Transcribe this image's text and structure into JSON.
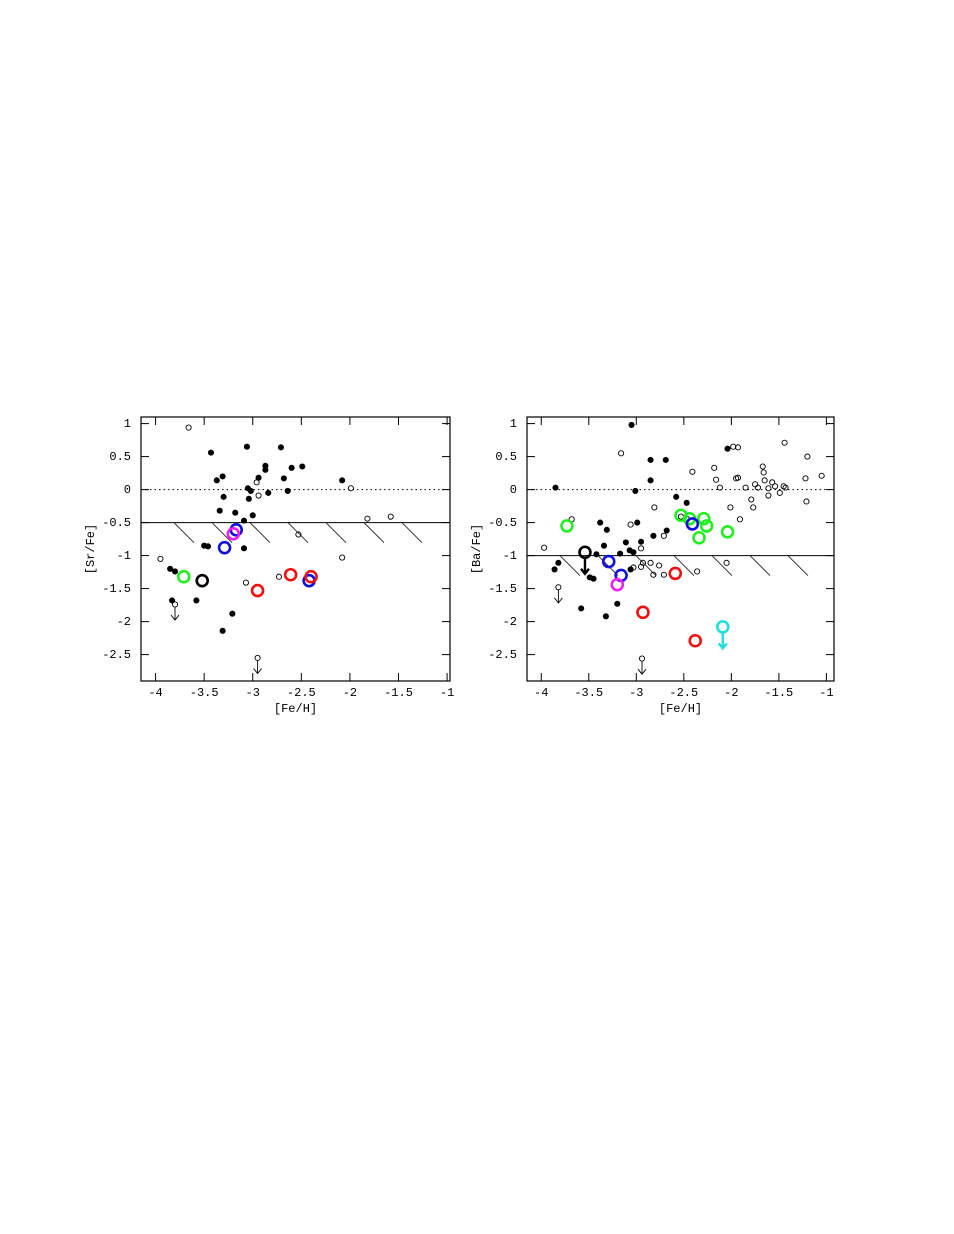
{
  "chart_data": [
    {
      "type": "scatter",
      "xlabel": "[Fe/H]",
      "ylabel": "[Sr/Fe]",
      "xlim": [
        -4.15,
        -0.97
      ],
      "ylim": [
        -2.9,
        1.1
      ],
      "xticks": [
        -4,
        -3.5,
        -3,
        -2.5,
        -2,
        -1.5,
        -1
      ],
      "yticks": [
        1,
        0.5,
        0,
        -0.5,
        -1,
        -1.5,
        -2,
        -2.5
      ],
      "hlines": [
        {
          "y": 0,
          "style": "dotted"
        },
        {
          "y": -0.5,
          "style": "solid",
          "hatch": true
        }
      ],
      "series": [
        {
          "color": "#000000",
          "marker": "filled",
          "x": [
            -3.43,
            -3.37,
            -3.31,
            -3.34,
            -3.3,
            -3.5,
            -3.46,
            -3.18,
            -3.06,
            -3.05,
            -3.02,
            -3.04,
            -2.94,
            -2.87,
            -2.87,
            -2.84,
            -2.71,
            -2.68,
            -2.6,
            -2.64,
            -2.49,
            -3.09,
            -3.09,
            -3.0,
            -3.85,
            -3.8,
            -3.83,
            -3.58,
            -3.21,
            -3.31,
            -2.08
          ],
          "y": [
            0.56,
            0.14,
            0.2,
            -0.32,
            -0.11,
            -0.85,
            -0.86,
            -0.35,
            0.65,
            0.02,
            -0.02,
            -0.14,
            0.18,
            0.36,
            0.3,
            -0.05,
            0.64,
            0.17,
            0.33,
            -0.02,
            0.35,
            -0.47,
            -0.89,
            -0.39,
            -1.2,
            -1.24,
            -1.68,
            -1.68,
            -1.88,
            -2.14,
            0.14
          ]
        },
        {
          "color": "#000000",
          "marker": "open",
          "x": [
            -3.66,
            -2.96,
            -2.94,
            -1.99,
            -1.82,
            -1.58,
            -2.53,
            -2.08,
            -3.95,
            -3.07,
            -2.73
          ],
          "y": [
            0.94,
            0.11,
            -0.09,
            0.02,
            -0.44,
            -0.41,
            -0.68,
            -1.03,
            -1.05,
            -1.41,
            -1.32
          ]
        },
        {
          "color": "#000000",
          "marker": "open",
          "upper_limit": true,
          "x": [
            -3.8,
            -2.95
          ],
          "y": [
            -1.74,
            -2.55
          ]
        },
        {
          "color": "#22ee22",
          "marker": "open-large",
          "x": [
            -3.71
          ],
          "y": [
            -1.32
          ]
        },
        {
          "color": "#000000",
          "marker": "open-large",
          "x": [
            -3.52
          ],
          "y": [
            -1.38
          ]
        },
        {
          "color": "#1010dd",
          "marker": "open-large",
          "x": [
            -3.29,
            -3.17,
            -2.42
          ],
          "y": [
            -0.88,
            -0.61,
            -1.38
          ]
        },
        {
          "color": "#ee22ee",
          "marker": "open-large",
          "x": [
            -3.2
          ],
          "y": [
            -0.67
          ]
        },
        {
          "color": "#ee1111",
          "marker": "open-large",
          "x": [
            -2.95,
            -2.61,
            -2.4
          ],
          "y": [
            -1.53,
            -1.29,
            -1.32
          ]
        }
      ]
    },
    {
      "type": "scatter",
      "xlabel": "[Fe/H]",
      "ylabel": "[Ba/Fe]",
      "xlim": [
        -4.15,
        -0.92
      ],
      "ylim": [
        -2.9,
        1.1
      ],
      "xticks": [
        -4,
        -3.5,
        -3,
        -2.5,
        -2,
        -1.5,
        -1
      ],
      "yticks": [
        1,
        0.5,
        0,
        -0.5,
        -1,
        -1.5,
        -2,
        -2.5
      ],
      "hlines": [
        {
          "y": 0,
          "style": "dotted"
        },
        {
          "y": -1,
          "style": "solid",
          "hatch": true
        }
      ],
      "series": [
        {
          "color": "#000000",
          "marker": "filled",
          "x": [
            -3.05,
            -3.85,
            -2.85,
            -2.69,
            -2.85,
            -3.01,
            -2.99,
            -3.38,
            -3.31,
            -3.34,
            -3.11,
            -2.95,
            -2.82,
            -2.68,
            -2.58,
            -2.47,
            -2.04,
            -3.07,
            -3.03,
            -3.17,
            -3.42,
            -3.86,
            -3.82,
            -3.49,
            -3.45,
            -3.58,
            -3.32,
            -3.2,
            -3.06
          ],
          "y": [
            0.98,
            0.03,
            0.45,
            0.45,
            0.14,
            -0.02,
            -0.5,
            -0.5,
            -0.61,
            -0.85,
            -0.8,
            -0.79,
            -0.7,
            -0.62,
            -0.11,
            -0.2,
            0.62,
            -0.92,
            -0.95,
            -0.97,
            -0.98,
            -1.21,
            -1.11,
            -1.33,
            -1.35,
            -1.8,
            -1.92,
            -1.73,
            -1.21
          ]
        },
        {
          "color": "#000000",
          "marker": "open",
          "x": [
            -3.16,
            -3.68,
            -3.97,
            -2.41,
            -2.18,
            -1.98,
            -1.93,
            -2.12,
            -2.16,
            -1.95,
            -1.85,
            -1.93,
            -1.75,
            -1.67,
            -1.66,
            -1.65,
            -1.72,
            -1.61,
            -1.57,
            -1.61,
            -1.54,
            -1.45,
            -1.49,
            -1.43,
            -1.44,
            -1.2,
            -1.05,
            -1.22,
            -1.21,
            -1.79,
            -1.77,
            -1.91,
            -2.01,
            -2.81,
            -3.06,
            -2.71,
            -2.95,
            -2.93,
            -2.85,
            -2.76,
            -2.82,
            -2.71,
            -3.03,
            -2.95,
            -2.36,
            -2.05,
            -2.53,
            -2.47
          ],
          "y": [
            0.55,
            -0.45,
            -0.88,
            0.27,
            0.33,
            0.65,
            0.64,
            0.03,
            0.15,
            0.17,
            0.03,
            0.18,
            0.08,
            0.35,
            0.26,
            0.14,
            0.03,
            0.02,
            0.11,
            -0.09,
            0.05,
            0.05,
            -0.05,
            0.03,
            0.71,
            0.5,
            0.21,
            0.17,
            -0.18,
            -0.15,
            -0.27,
            -0.45,
            -0.27,
            -0.27,
            -0.53,
            -0.7,
            -0.89,
            -1.11,
            -1.11,
            -1.15,
            -1.29,
            -1.29,
            -1.18,
            -1.17,
            -1.24,
            -1.11,
            -0.41,
            -0.44
          ]
        },
        {
          "color": "#000000",
          "marker": "open",
          "upper_limit": true,
          "x": [
            -3.82,
            -2.94
          ],
          "y": [
            -1.48,
            -2.56
          ]
        },
        {
          "color": "#22ee22",
          "marker": "open-large",
          "x": [
            -3.73,
            -2.53,
            -2.44,
            -2.29,
            -2.26,
            -2.34,
            -2.04
          ],
          "y": [
            -0.55,
            -0.39,
            -0.44,
            -0.44,
            -0.55,
            -0.73,
            -0.64
          ]
        },
        {
          "color": "#000000",
          "marker": "open-large",
          "upper_limit": true,
          "x": [
            -3.54
          ],
          "y": [
            -0.95
          ]
        },
        {
          "color": "#1010dd",
          "marker": "open-large",
          "x": [
            -3.29,
            -3.16,
            -2.41
          ],
          "y": [
            -1.09,
            -1.3,
            -0.52
          ]
        },
        {
          "color": "#ee22ee",
          "marker": "open-large",
          "x": [
            -3.2
          ],
          "y": [
            -1.44
          ]
        },
        {
          "color": "#ee1111",
          "marker": "open-large",
          "x": [
            -2.93,
            -2.59,
            -2.38
          ],
          "y": [
            -1.86,
            -1.27,
            -2.29
          ]
        },
        {
          "color": "#22dddd",
          "marker": "open-large",
          "upper_limit": true,
          "x": [
            -2.09
          ],
          "y": [
            -2.08
          ]
        }
      ]
    }
  ]
}
